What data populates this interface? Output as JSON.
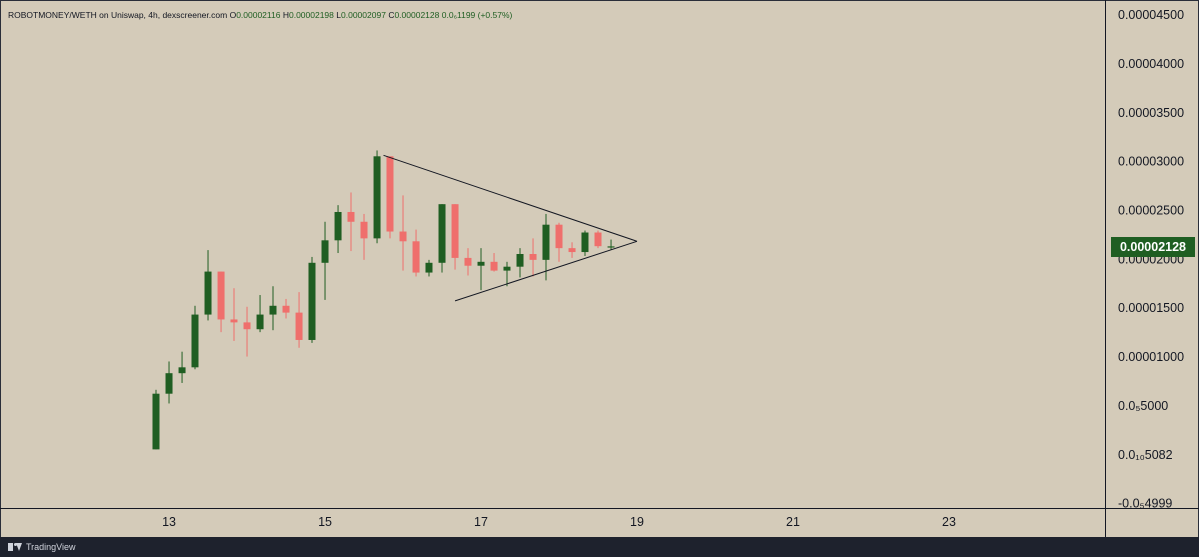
{
  "legend": {
    "symbol": "ROBOTMONEY/WETH on Uniswap, 4h, dexscreener.com",
    "o_label": "O",
    "o_value": "0.00002116",
    "h_label": "H",
    "h_value": "0.00002198",
    "l_label": "L",
    "l_value": "0.00002097",
    "c_label": "C",
    "c_value": "0.00002128",
    "change": "0.0₆1199 (+0.57%)"
  },
  "last_price_label": "0.00002128",
  "footer": {
    "brand": "TradingView"
  },
  "colors": {
    "background": "#d4cbb9",
    "up": "#1f5e22",
    "down": "#ef6f6c",
    "line": "#131722",
    "footer": "#1e222d"
  },
  "icons": [
    "tradingview-logo-icon"
  ],
  "chart_data": {
    "type": "candlestick",
    "timeframe": "4h",
    "x_ticks": [
      {
        "day": 13,
        "label": "13"
      },
      {
        "day": 15,
        "label": "15"
      },
      {
        "day": 17,
        "label": "17"
      },
      {
        "day": 19,
        "label": "19"
      },
      {
        "day": 21,
        "label": "21"
      },
      {
        "day": 23,
        "label": "23"
      }
    ],
    "y_ticks": [
      {
        "value": 4.5e-05,
        "label": "0.00004500"
      },
      {
        "value": 4e-05,
        "label": "0.00004000"
      },
      {
        "value": 3.5e-05,
        "label": "0.00003500"
      },
      {
        "value": 3e-05,
        "label": "0.00003000"
      },
      {
        "value": 2.5e-05,
        "label": "0.00002500"
      },
      {
        "value": 2e-05,
        "label": "0.00002000"
      },
      {
        "value": 1.5e-05,
        "label": "0.00001500"
      },
      {
        "value": 1e-05,
        "label": "0.00001000"
      },
      {
        "value": 5e-06,
        "label": "0.0₅5000"
      },
      {
        "value": 5.082e-10,
        "label": "0.0₁₀5082"
      },
      {
        "value": -4.999e-06,
        "label": "-0.0₅4999"
      }
    ],
    "y_range": [
      -5.5e-06,
      4.65e-05
    ],
    "x_range": [
      10.833,
      25.0
    ],
    "candles": [
      {
        "t": 12.833,
        "o": 5e-07,
        "h": 6.6e-06,
        "l": 5e-07,
        "c": 6.2e-06
      },
      {
        "t": 13.0,
        "o": 6.2e-06,
        "h": 9.5e-06,
        "l": 5.2e-06,
        "c": 8.3e-06
      },
      {
        "t": 13.167,
        "o": 8.3e-06,
        "h": 1.05e-05,
        "l": 7.3e-06,
        "c": 8.9e-06
      },
      {
        "t": 13.333,
        "o": 8.9e-06,
        "h": 1.52e-05,
        "l": 8.7e-06,
        "c": 1.43e-05
      },
      {
        "t": 13.5,
        "o": 1.43e-05,
        "h": 2.09e-05,
        "l": 1.37e-05,
        "c": 1.87e-05
      },
      {
        "t": 13.667,
        "o": 1.87e-05,
        "h": 1.87e-05,
        "l": 1.25e-05,
        "c": 1.38e-05
      },
      {
        "t": 13.833,
        "o": 1.38e-05,
        "h": 1.7e-05,
        "l": 1.16e-05,
        "c": 1.35e-05
      },
      {
        "t": 14.0,
        "o": 1.35e-05,
        "h": 1.51e-05,
        "l": 1e-05,
        "c": 1.28e-05
      },
      {
        "t": 14.167,
        "o": 1.28e-05,
        "h": 1.63e-05,
        "l": 1.25e-05,
        "c": 1.43e-05
      },
      {
        "t": 14.333,
        "o": 1.43e-05,
        "h": 1.72e-05,
        "l": 1.27e-05,
        "c": 1.52e-05
      },
      {
        "t": 14.5,
        "o": 1.52e-05,
        "h": 1.59e-05,
        "l": 1.39e-05,
        "c": 1.45e-05
      },
      {
        "t": 14.667,
        "o": 1.45e-05,
        "h": 1.66e-05,
        "l": 1.09e-05,
        "c": 1.17e-05
      },
      {
        "t": 14.833,
        "o": 1.17e-05,
        "h": 2.02e-05,
        "l": 1.14e-05,
        "c": 1.96e-05
      },
      {
        "t": 15.0,
        "o": 1.96e-05,
        "h": 2.38e-05,
        "l": 1.58e-05,
        "c": 2.19e-05
      },
      {
        "t": 15.167,
        "o": 2.19e-05,
        "h": 2.55e-05,
        "l": 2.06e-05,
        "c": 2.48e-05
      },
      {
        "t": 15.333,
        "o": 2.48e-05,
        "h": 2.68e-05,
        "l": 2.08e-05,
        "c": 2.38e-05
      },
      {
        "t": 15.5,
        "o": 2.38e-05,
        "h": 2.46e-05,
        "l": 1.99e-05,
        "c": 2.21e-05
      },
      {
        "t": 15.667,
        "o": 2.21e-05,
        "h": 3.11e-05,
        "l": 2.16e-05,
        "c": 3.05e-05
      },
      {
        "t": 15.833,
        "o": 3.05e-05,
        "h": 3.05e-05,
        "l": 2.21e-05,
        "c": 2.28e-05
      },
      {
        "t": 16.0,
        "o": 2.28e-05,
        "h": 2.65e-05,
        "l": 1.88e-05,
        "c": 2.18e-05
      },
      {
        "t": 16.167,
        "o": 2.18e-05,
        "h": 2.3e-05,
        "l": 1.82e-05,
        "c": 1.86e-05
      },
      {
        "t": 16.333,
        "o": 1.86e-05,
        "h": 1.99e-05,
        "l": 1.82e-05,
        "c": 1.96e-05
      },
      {
        "t": 16.5,
        "o": 1.96e-05,
        "h": 2.56e-05,
        "l": 1.86e-05,
        "c": 2.56e-05
      },
      {
        "t": 16.667,
        "o": 2.56e-05,
        "h": 2.56e-05,
        "l": 1.89e-05,
        "c": 2.01e-05
      },
      {
        "t": 16.833,
        "o": 2.01e-05,
        "h": 2.11e-05,
        "l": 1.83e-05,
        "c": 1.93e-05
      },
      {
        "t": 17.0,
        "o": 1.93e-05,
        "h": 2.11e-05,
        "l": 1.68e-05,
        "c": 1.97e-05
      },
      {
        "t": 17.167,
        "o": 1.97e-05,
        "h": 2.06e-05,
        "l": 1.87e-05,
        "c": 1.88e-05
      },
      {
        "t": 17.333,
        "o": 1.88e-05,
        "h": 1.97e-05,
        "l": 1.72e-05,
        "c": 1.92e-05
      },
      {
        "t": 17.5,
        "o": 1.92e-05,
        "h": 2.11e-05,
        "l": 1.81e-05,
        "c": 2.05e-05
      },
      {
        "t": 17.667,
        "o": 2.05e-05,
        "h": 2.21e-05,
        "l": 1.82e-05,
        "c": 1.99e-05
      },
      {
        "t": 17.833,
        "o": 1.99e-05,
        "h": 2.46e-05,
        "l": 1.78e-05,
        "c": 2.35e-05
      },
      {
        "t": 18.0,
        "o": 2.35e-05,
        "h": 2.37e-05,
        "l": 1.97e-05,
        "c": 2.11e-05
      },
      {
        "t": 18.167,
        "o": 2.11e-05,
        "h": 2.17e-05,
        "l": 2.01e-05,
        "c": 2.07e-05
      },
      {
        "t": 18.333,
        "o": 2.07e-05,
        "h": 2.29e-05,
        "l": 2.03e-05,
        "c": 2.27e-05
      },
      {
        "t": 18.5,
        "o": 2.27e-05,
        "h": 2.29e-05,
        "l": 2.11e-05,
        "c": 2.13e-05
      },
      {
        "t": 18.667,
        "o": 2.116e-05,
        "h": 2.198e-05,
        "l": 2.097e-05,
        "c": 2.128e-05
      }
    ],
    "annotations": [
      {
        "type": "trendline",
        "from": {
          "t": 15.75,
          "v": 3.06e-05
        },
        "to": {
          "t": 19.0,
          "v": 2.18e-05
        }
      },
      {
        "type": "trendline",
        "from": {
          "t": 16.667,
          "v": 1.57e-05
        },
        "to": {
          "t": 19.0,
          "v": 2.18e-05
        }
      }
    ]
  }
}
